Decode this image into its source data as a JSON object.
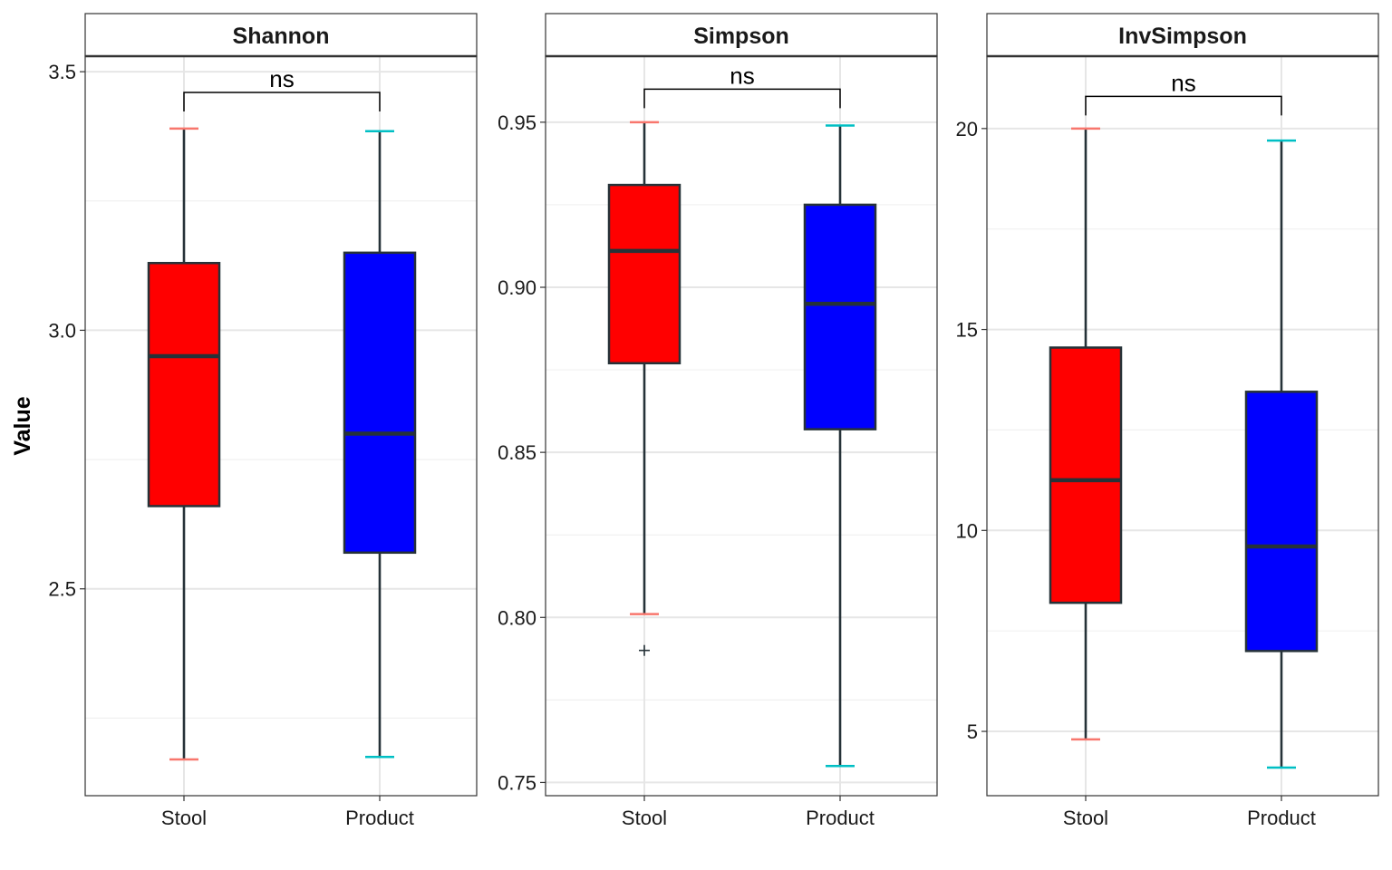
{
  "chart_data": {
    "type": "boxplot",
    "ylabel": "Value",
    "categories": [
      "Stool",
      "Product"
    ],
    "group_colors": {
      "fill": [
        "#ff0000",
        "#0000ff"
      ],
      "whisker_cap": [
        "#f8766d",
        "#00bfc4"
      ]
    },
    "panels": [
      {
        "title": "Shannon",
        "ylim": [
          2.1,
          3.53
        ],
        "yticks": [
          2.5,
          3.0,
          3.5
        ],
        "ytick_labels": [
          "2.5",
          "3.0",
          "3.5"
        ],
        "minor_ticks": [
          2.25,
          2.75,
          3.25
        ],
        "significance": "ns",
        "bracket_y": 3.46,
        "boxes": [
          {
            "category": "Stool",
            "min": 2.17,
            "q1": 2.66,
            "median": 2.95,
            "q3": 3.13,
            "max": 3.39,
            "outliers": []
          },
          {
            "category": "Product",
            "min": 2.175,
            "q1": 2.57,
            "median": 2.8,
            "q3": 3.15,
            "max": 3.385,
            "outliers": []
          }
        ]
      },
      {
        "title": "Simpson",
        "ylim": [
          0.746,
          0.97
        ],
        "yticks": [
          0.75,
          0.8,
          0.85,
          0.9,
          0.95
        ],
        "ytick_labels": [
          "0.75",
          "0.80",
          "0.85",
          "0.90",
          "0.95"
        ],
        "minor_ticks": [
          0.775,
          0.825,
          0.875,
          0.925
        ],
        "significance": "ns",
        "bracket_y": 0.96,
        "boxes": [
          {
            "category": "Stool",
            "min": 0.801,
            "q1": 0.877,
            "median": 0.911,
            "q3": 0.931,
            "max": 0.95,
            "outliers": [
              0.79
            ]
          },
          {
            "category": "Product",
            "min": 0.755,
            "q1": 0.857,
            "median": 0.895,
            "q3": 0.925,
            "max": 0.949,
            "outliers": []
          }
        ]
      },
      {
        "title": "InvSimpson",
        "ylim": [
          3.4,
          21.8
        ],
        "yticks": [
          5,
          10,
          15,
          20
        ],
        "ytick_labels": [
          "5",
          "10",
          "15",
          "20"
        ],
        "minor_ticks": [
          7.5,
          12.5,
          17.5
        ],
        "significance": "ns",
        "bracket_y": 20.8,
        "boxes": [
          {
            "category": "Stool",
            "min": 4.8,
            "q1": 8.2,
            "median": 11.25,
            "q3": 14.55,
            "max": 20.0,
            "outliers": []
          },
          {
            "category": "Product",
            "min": 4.1,
            "q1": 7.0,
            "median": 9.6,
            "q3": 13.45,
            "max": 19.7,
            "outliers": []
          }
        ]
      }
    ]
  }
}
